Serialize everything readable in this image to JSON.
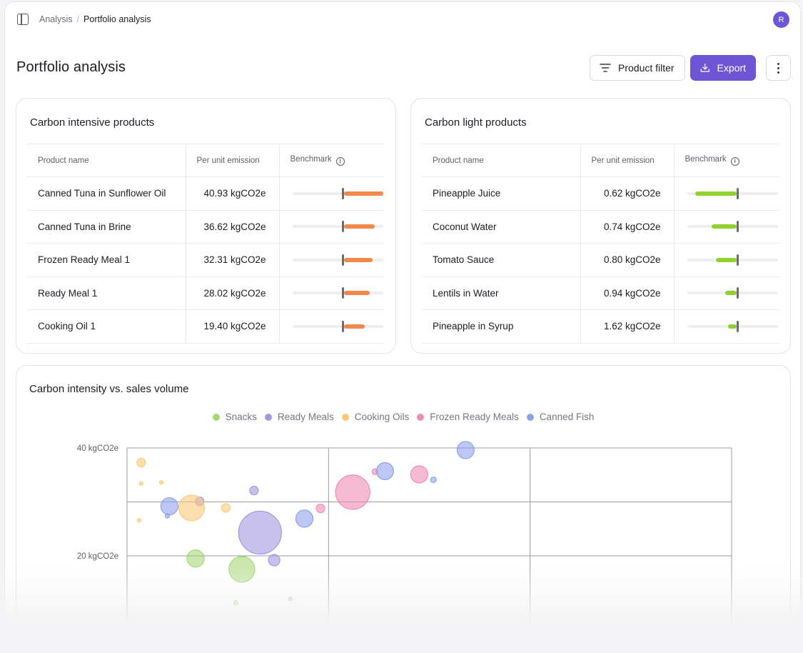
{
  "breadcrumb": {
    "parent": "Analysis",
    "separator": "/",
    "current": "Portfolio analysis"
  },
  "user": {
    "avatar_initial": "R"
  },
  "page": {
    "title": "Portfolio analysis"
  },
  "toolbar": {
    "filter_label": "Product filter",
    "export_label": "Export"
  },
  "colors": {
    "accent": "#6e55d6",
    "intensive_bar": "#f0894a",
    "light_bar": "#8fd12f"
  },
  "intensive": {
    "title": "Carbon intensive products",
    "columns": {
      "name": "Product name",
      "emission": "Per unit emission",
      "benchmark": "Benchmark"
    },
    "rows": [
      {
        "name": "Canned Tuna in Sunflower Oil",
        "emission": "40.93 kgCO2e",
        "fill": 0.44
      },
      {
        "name": "Canned Tuna in Brine",
        "emission": "36.62 kgCO2e",
        "fill": 0.34
      },
      {
        "name": "Frozen Ready Meal 1",
        "emission": "32.31 kgCO2e",
        "fill": 0.32
      },
      {
        "name": "Ready Meal 1",
        "emission": "28.02 kgCO2e",
        "fill": 0.29
      },
      {
        "name": "Cooking Oil 1",
        "emission": "19.40 kgCO2e",
        "fill": 0.23
      }
    ]
  },
  "light": {
    "title": "Carbon light products",
    "columns": {
      "name": "Product name",
      "emission": "Per unit emission",
      "benchmark": "Benchmark"
    },
    "rows": [
      {
        "name": "Pineapple Juice",
        "emission": "0.62 kgCO2e",
        "fill": 0.46
      },
      {
        "name": "Coconut Water",
        "emission": "0.74 kgCO2e",
        "fill": 0.28
      },
      {
        "name": "Tomato Sauce",
        "emission": "0.80 kgCO2e",
        "fill": 0.23
      },
      {
        "name": "Lentils in Water",
        "emission": "0.94 kgCO2e",
        "fill": 0.13
      },
      {
        "name": "Pineapple in Syrup",
        "emission": "1.62 kgCO2e",
        "fill": 0.1
      }
    ]
  },
  "scatter": {
    "title": "Carbon intensity vs. sales volume",
    "legend": [
      {
        "name": "Snacks",
        "color": "#a6d776"
      },
      {
        "name": "Ready Meals",
        "color": "#a497e0"
      },
      {
        "name": "Cooking Oils",
        "color": "#fcc97a"
      },
      {
        "name": "Frozen Ready Meals",
        "color": "#f08bb4"
      },
      {
        "name": "Canned Fish",
        "color": "#8fa2ec"
      }
    ]
  },
  "chart_data": {
    "type": "scatter",
    "title": "Carbon intensity vs. sales volume",
    "ytick_labels": [
      "40 kgCO2e",
      "20 kgCO2e"
    ],
    "ylim": [
      10,
      40
    ],
    "xlim": [
      0,
      3
    ],
    "x_gridlines": 3,
    "legend_placement": "top-center",
    "series": [
      {
        "name": "Snacks",
        "points": [
          {
            "x": 0.34,
            "y": 19.5,
            "size": 12
          },
          {
            "x": 0.57,
            "y": 17.5,
            "size": 18
          },
          {
            "x": 0.54,
            "y": 11.3,
            "size": 3
          },
          {
            "x": 0.81,
            "y": 12.0,
            "size": 2.5
          }
        ]
      },
      {
        "name": "Ready Meals",
        "points": [
          {
            "x": 0.66,
            "y": 24.3,
            "size": 30
          },
          {
            "x": 0.63,
            "y": 32.1,
            "size": 6
          },
          {
            "x": 0.73,
            "y": 19.2,
            "size": 8
          },
          {
            "x": 0.36,
            "y": 30.1,
            "size": 6
          }
        ]
      },
      {
        "name": "Cooking Oils",
        "points": [
          {
            "x": 0.32,
            "y": 28.9,
            "size": 18
          },
          {
            "x": 0.49,
            "y": 28.9,
            "size": 6
          },
          {
            "x": 0.07,
            "y": 37.3,
            "size": 6
          },
          {
            "x": 0.17,
            "y": 33.6,
            "size": 2.5
          },
          {
            "x": 0.06,
            "y": 26.6,
            "size": 2.5
          },
          {
            "x": 0.07,
            "y": 33.4,
            "size": 2.5
          }
        ]
      },
      {
        "name": "Frozen Ready Meals",
        "points": [
          {
            "x": 1.12,
            "y": 31.8,
            "size": 24
          },
          {
            "x": 0.96,
            "y": 28.8,
            "size": 6
          },
          {
            "x": 1.23,
            "y": 35.6,
            "size": 4
          },
          {
            "x": 1.45,
            "y": 35.1,
            "size": 12
          }
        ]
      },
      {
        "name": "Canned Fish",
        "points": [
          {
            "x": 0.21,
            "y": 29.2,
            "size": 12
          },
          {
            "x": 0.88,
            "y": 26.9,
            "size": 12
          },
          {
            "x": 1.28,
            "y": 35.7,
            "size": 12
          },
          {
            "x": 1.68,
            "y": 39.6,
            "size": 12
          },
          {
            "x": 1.52,
            "y": 34.1,
            "size": 4
          },
          {
            "x": 0.2,
            "y": 27.4,
            "size": 3
          }
        ]
      }
    ]
  }
}
